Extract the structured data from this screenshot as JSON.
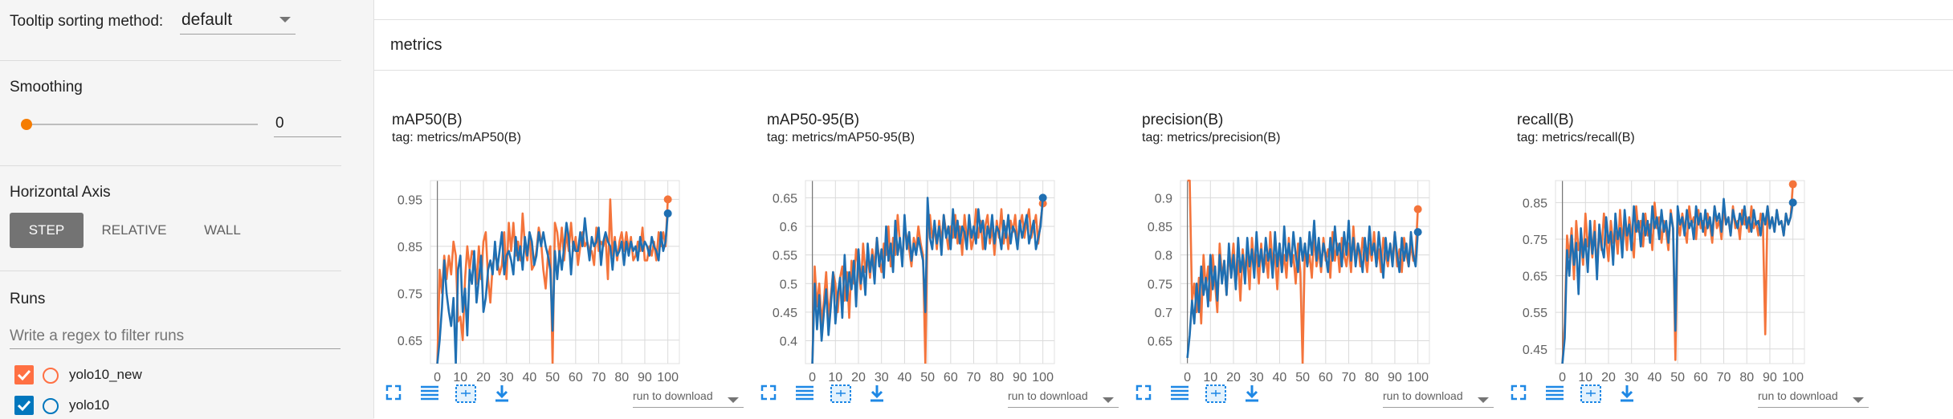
{
  "sidebar": {
    "tooltip_label": "Tooltip sorting method:",
    "tooltip_value": "default",
    "smoothing_label": "Smoothing",
    "smoothing_value": "0",
    "smoothing_fraction": 0,
    "axis_label": "Horizontal Axis",
    "axis_buttons": [
      "STEP",
      "RELATIVE",
      "WALL"
    ],
    "axis_selected": "STEP",
    "runs_label": "Runs",
    "runs_filter_placeholder": "Write a regex to filter runs",
    "runs": [
      {
        "name": "yolo10_new",
        "checked": true,
        "color": "#ff7043"
      },
      {
        "name": "yolo10",
        "checked": true,
        "color": "#0277bd"
      }
    ]
  },
  "main": {
    "group_title": "metrics",
    "run_to_download": "run to download"
  },
  "colors": {
    "accent": "#f57c00",
    "series_orange": "#f4743b",
    "series_blue": "#1f6fb2",
    "step_button": "#737373"
  },
  "chart_data": [
    {
      "type": "line",
      "title": "mAP50(B)",
      "subtitle": "tag: metrics/mAP50(B)",
      "x_ticks": [
        "0",
        "10",
        "20",
        "30",
        "40",
        "50",
        "60",
        "70",
        "80",
        "90",
        "100"
      ],
      "y_ticks": [
        "0.65",
        "0.75",
        "0.85",
        "0.95"
      ],
      "xlim": [
        -3,
        105
      ],
      "ylim": [
        0.6,
        0.99
      ],
      "series": [
        {
          "name": "yolo10_new",
          "color": "#f4743b",
          "x_start": 0,
          "values": [
            0.6,
            0.8,
            0.75,
            0.83,
            0.78,
            0.83,
            0.79,
            0.86,
            0.83,
            0.69,
            0.7,
            0.65,
            0.78,
            0.85,
            0.8,
            0.84,
            0.83,
            0.77,
            0.85,
            0.78,
            0.86,
            0.88,
            0.78,
            0.73,
            0.81,
            0.83,
            0.82,
            0.79,
            0.81,
            0.88,
            0.78,
            0.9,
            0.84,
            0.9,
            0.83,
            0.86,
            0.82,
            0.92,
            0.85,
            0.82,
            0.88,
            0.8,
            0.81,
            0.84,
            0.89,
            0.86,
            0.8,
            0.76,
            0.83,
            0.85,
            0.6,
            0.9,
            0.88,
            0.83,
            0.89,
            0.82,
            0.88,
            0.84,
            0.9,
            0.84,
            0.87,
            0.81,
            0.85,
            0.88,
            0.85,
            0.86,
            0.84,
            0.84,
            0.81,
            0.89,
            0.84,
            0.86,
            0.85,
            0.87,
            0.78,
            0.95,
            0.83,
            0.87,
            0.82,
            0.86,
            0.88,
            0.84,
            0.88,
            0.84,
            0.87,
            0.82,
            0.83,
            0.86,
            0.84,
            0.89,
            0.82,
            0.82,
            0.85,
            0.83,
            0.86,
            0.82,
            0.88,
            0.85,
            0.88,
            0.85,
            0.95
          ]
        },
        {
          "name": "yolo10",
          "color": "#1f6fb2",
          "x_start": 0,
          "values": [
            0.6,
            0.65,
            0.72,
            0.82,
            0.75,
            0.71,
            0.68,
            0.74,
            0.6,
            0.8,
            0.83,
            0.71,
            0.76,
            0.66,
            0.8,
            0.77,
            0.84,
            0.73,
            0.78,
            0.83,
            0.71,
            0.74,
            0.8,
            0.82,
            0.79,
            0.86,
            0.8,
            0.84,
            0.88,
            0.79,
            0.83,
            0.84,
            0.82,
            0.79,
            0.87,
            0.82,
            0.85,
            0.8,
            0.87,
            0.83,
            0.88,
            0.86,
            0.81,
            0.83,
            0.88,
            0.85,
            0.88,
            0.85,
            0.83,
            0.8,
            0.67,
            0.84,
            0.78,
            0.84,
            0.8,
            0.85,
            0.9,
            0.87,
            0.79,
            0.86,
            0.84,
            0.84,
            0.88,
            0.85,
            0.91,
            0.86,
            0.82,
            0.87,
            0.85,
            0.86,
            0.89,
            0.81,
            0.86,
            0.88,
            0.86,
            0.85,
            0.8,
            0.86,
            0.83,
            0.84,
            0.86,
            0.81,
            0.86,
            0.83,
            0.86,
            0.84,
            0.85,
            0.82,
            0.87,
            0.84,
            0.86,
            0.85,
            0.83,
            0.87,
            0.85,
            0.84,
            0.82,
            0.88,
            0.84,
            0.86,
            0.92
          ]
        }
      ]
    },
    {
      "type": "line",
      "title": "mAP50-95(B)",
      "subtitle": "tag: metrics/mAP50-95(B)",
      "x_ticks": [
        "0",
        "10",
        "20",
        "30",
        "40",
        "50",
        "60",
        "70",
        "80",
        "90",
        "100"
      ],
      "y_ticks": [
        "0.4",
        "0.45",
        "0.5",
        "0.55",
        "0.6",
        "0.65"
      ],
      "xlim": [
        -3,
        105
      ],
      "ylim": [
        0.36,
        0.68
      ],
      "series": [
        {
          "name": "yolo10_new",
          "color": "#f4743b",
          "x_start": 0,
          "values": [
            0.36,
            0.53,
            0.46,
            0.5,
            0.43,
            0.47,
            0.52,
            0.44,
            0.48,
            0.52,
            0.5,
            0.45,
            0.51,
            0.53,
            0.47,
            0.52,
            0.44,
            0.54,
            0.5,
            0.56,
            0.53,
            0.49,
            0.57,
            0.52,
            0.55,
            0.51,
            0.56,
            0.53,
            0.58,
            0.54,
            0.52,
            0.57,
            0.55,
            0.6,
            0.53,
            0.58,
            0.55,
            0.62,
            0.57,
            0.54,
            0.6,
            0.58,
            0.56,
            0.53,
            0.58,
            0.56,
            0.6,
            0.57,
            0.55,
            0.36,
            0.6,
            0.62,
            0.58,
            0.6,
            0.56,
            0.61,
            0.57,
            0.62,
            0.59,
            0.56,
            0.6,
            0.58,
            0.62,
            0.57,
            0.6,
            0.55,
            0.62,
            0.58,
            0.6,
            0.56,
            0.58,
            0.63,
            0.58,
            0.61,
            0.56,
            0.6,
            0.62,
            0.57,
            0.6,
            0.55,
            0.61,
            0.58,
            0.63,
            0.57,
            0.6,
            0.56,
            0.61,
            0.59,
            0.62,
            0.57,
            0.6,
            0.62,
            0.58,
            0.61,
            0.63,
            0.58,
            0.6,
            0.62,
            0.57,
            0.61,
            0.64
          ]
        },
        {
          "name": "yolo10",
          "color": "#1f6fb2",
          "x_start": 0,
          "values": [
            0.36,
            0.5,
            0.42,
            0.48,
            0.4,
            0.45,
            0.49,
            0.41,
            0.46,
            0.52,
            0.43,
            0.48,
            0.51,
            0.44,
            0.55,
            0.47,
            0.52,
            0.49,
            0.54,
            0.46,
            0.56,
            0.5,
            0.53,
            0.48,
            0.57,
            0.52,
            0.55,
            0.5,
            0.58,
            0.53,
            0.56,
            0.51,
            0.6,
            0.54,
            0.57,
            0.52,
            0.61,
            0.55,
            0.58,
            0.53,
            0.62,
            0.56,
            0.59,
            0.54,
            0.57,
            0.55,
            0.58,
            0.56,
            0.54,
            0.45,
            0.65,
            0.58,
            0.56,
            0.61,
            0.57,
            0.6,
            0.55,
            0.62,
            0.58,
            0.6,
            0.56,
            0.63,
            0.58,
            0.61,
            0.57,
            0.6,
            0.59,
            0.56,
            0.62,
            0.58,
            0.6,
            0.57,
            0.63,
            0.59,
            0.61,
            0.56,
            0.6,
            0.58,
            0.62,
            0.57,
            0.6,
            0.59,
            0.56,
            0.61,
            0.58,
            0.62,
            0.57,
            0.6,
            0.59,
            0.56,
            0.61,
            0.58,
            0.6,
            0.62,
            0.57,
            0.59,
            0.61,
            0.56,
            0.58,
            0.6,
            0.65
          ]
        }
      ]
    },
    {
      "type": "line",
      "title": "precision(B)",
      "subtitle": "tag: metrics/precision(B)",
      "x_ticks": [
        "0",
        "10",
        "20",
        "30",
        "40",
        "50",
        "60",
        "70",
        "80",
        "90",
        "100"
      ],
      "y_ticks": [
        "0.65",
        "0.7",
        "0.75",
        "0.8",
        "0.85",
        "0.9"
      ],
      "xlim": [
        -3,
        105
      ],
      "ylim": [
        0.61,
        0.93
      ],
      "series": [
        {
          "name": "yolo10_new",
          "color": "#f4743b",
          "x_start": 0,
          "values": [
            0.93,
            0.93,
            0.72,
            0.75,
            0.7,
            0.76,
            0.68,
            0.8,
            0.74,
            0.78,
            0.72,
            0.8,
            0.75,
            0.7,
            0.82,
            0.76,
            0.79,
            0.73,
            0.8,
            0.77,
            0.82,
            0.75,
            0.79,
            0.72,
            0.81,
            0.77,
            0.8,
            0.74,
            0.83,
            0.78,
            0.8,
            0.75,
            0.82,
            0.77,
            0.8,
            0.76,
            0.84,
            0.78,
            0.8,
            0.74,
            0.82,
            0.77,
            0.8,
            0.76,
            0.83,
            0.78,
            0.8,
            0.75,
            0.82,
            0.77,
            0.61,
            0.82,
            0.78,
            0.8,
            0.76,
            0.84,
            0.78,
            0.81,
            0.77,
            0.83,
            0.79,
            0.81,
            0.76,
            0.84,
            0.79,
            0.82,
            0.77,
            0.83,
            0.8,
            0.78,
            0.82,
            0.77,
            0.85,
            0.79,
            0.82,
            0.78,
            0.83,
            0.8,
            0.77,
            0.82,
            0.79,
            0.84,
            0.78,
            0.81,
            0.77,
            0.83,
            0.8,
            0.78,
            0.82,
            0.79,
            0.84,
            0.78,
            0.81,
            0.77,
            0.83,
            0.8,
            0.78,
            0.82,
            0.79,
            0.8,
            0.88
          ]
        },
        {
          "name": "yolo10",
          "color": "#1f6fb2",
          "x_start": 0,
          "values": [
            0.62,
            0.66,
            0.72,
            0.68,
            0.75,
            0.7,
            0.78,
            0.73,
            0.76,
            0.71,
            0.8,
            0.74,
            0.78,
            0.72,
            0.8,
            0.75,
            0.79,
            0.73,
            0.82,
            0.76,
            0.8,
            0.74,
            0.83,
            0.77,
            0.8,
            0.75,
            0.83,
            0.78,
            0.81,
            0.76,
            0.84,
            0.78,
            0.81,
            0.77,
            0.83,
            0.79,
            0.81,
            0.76,
            0.84,
            0.78,
            0.82,
            0.77,
            0.85,
            0.79,
            0.82,
            0.78,
            0.84,
            0.8,
            0.77,
            0.83,
            0.79,
            0.82,
            0.78,
            0.84,
            0.8,
            0.86,
            0.79,
            0.83,
            0.78,
            0.82,
            0.8,
            0.77,
            0.83,
            0.79,
            0.85,
            0.8,
            0.82,
            0.78,
            0.84,
            0.8,
            0.86,
            0.79,
            0.83,
            0.78,
            0.82,
            0.8,
            0.77,
            0.83,
            0.79,
            0.85,
            0.8,
            0.82,
            0.78,
            0.84,
            0.8,
            0.76,
            0.83,
            0.79,
            0.82,
            0.78,
            0.84,
            0.8,
            0.77,
            0.83,
            0.79,
            0.82,
            0.78,
            0.84,
            0.8,
            0.78,
            0.84
          ]
        }
      ]
    },
    {
      "type": "line",
      "title": "recall(B)",
      "subtitle": "tag: metrics/recall(B)",
      "x_ticks": [
        "0",
        "10",
        "20",
        "30",
        "40",
        "50",
        "60",
        "70",
        "80",
        "90",
        "100"
      ],
      "y_ticks": [
        "0.45",
        "0.55",
        "0.65",
        "0.75",
        "0.85"
      ],
      "xlim": [
        -3,
        105
      ],
      "ylim": [
        0.41,
        0.91
      ],
      "series": [
        {
          "name": "yolo10_new",
          "color": "#f4743b",
          "x_start": 0,
          "values": [
            0.41,
            0.52,
            0.76,
            0.7,
            0.78,
            0.64,
            0.8,
            0.72,
            0.75,
            0.68,
            0.82,
            0.73,
            0.77,
            0.7,
            0.8,
            0.66,
            0.78,
            0.72,
            0.82,
            0.75,
            0.69,
            0.8,
            0.74,
            0.77,
            0.71,
            0.83,
            0.75,
            0.79,
            0.72,
            0.81,
            0.76,
            0.7,
            0.84,
            0.77,
            0.8,
            0.73,
            0.82,
            0.76,
            0.79,
            0.72,
            0.85,
            0.78,
            0.81,
            0.74,
            0.8,
            0.77,
            0.72,
            0.83,
            0.78,
            0.42,
            0.8,
            0.76,
            0.82,
            0.78,
            0.74,
            0.84,
            0.79,
            0.81,
            0.75,
            0.83,
            0.78,
            0.8,
            0.76,
            0.82,
            0.79,
            0.74,
            0.84,
            0.78,
            0.8,
            0.75,
            0.83,
            0.79,
            0.81,
            0.76,
            0.84,
            0.78,
            0.8,
            0.75,
            0.83,
            0.79,
            0.81,
            0.77,
            0.84,
            0.78,
            0.8,
            0.76,
            0.82,
            0.79,
            0.49,
            0.84,
            0.78,
            0.81,
            0.77,
            0.83,
            0.79,
            0.8,
            0.76,
            0.82,
            0.79,
            0.81,
            0.9
          ]
        },
        {
          "name": "yolo10",
          "color": "#1f6fb2",
          "x_start": 0,
          "values": [
            0.41,
            0.48,
            0.72,
            0.65,
            0.76,
            0.68,
            0.74,
            0.6,
            0.78,
            0.7,
            0.75,
            0.66,
            0.8,
            0.71,
            0.77,
            0.64,
            0.79,
            0.73,
            0.7,
            0.81,
            0.74,
            0.77,
            0.68,
            0.82,
            0.75,
            0.78,
            0.7,
            0.83,
            0.76,
            0.79,
            0.72,
            0.84,
            0.77,
            0.8,
            0.73,
            0.82,
            0.76,
            0.8,
            0.74,
            0.84,
            0.78,
            0.81,
            0.75,
            0.83,
            0.77,
            0.8,
            0.74,
            0.82,
            0.78,
            0.5,
            0.84,
            0.79,
            0.81,
            0.76,
            0.83,
            0.78,
            0.8,
            0.75,
            0.84,
            0.79,
            0.82,
            0.77,
            0.83,
            0.78,
            0.81,
            0.76,
            0.84,
            0.8,
            0.82,
            0.77,
            0.86,
            0.79,
            0.81,
            0.76,
            0.83,
            0.8,
            0.78,
            0.82,
            0.79,
            0.84,
            0.78,
            0.81,
            0.77,
            0.83,
            0.79,
            0.8,
            0.76,
            0.82,
            0.79,
            0.84,
            0.78,
            0.81,
            0.77,
            0.83,
            0.79,
            0.8,
            0.76,
            0.82,
            0.79,
            0.81,
            0.85
          ]
        }
      ]
    }
  ]
}
